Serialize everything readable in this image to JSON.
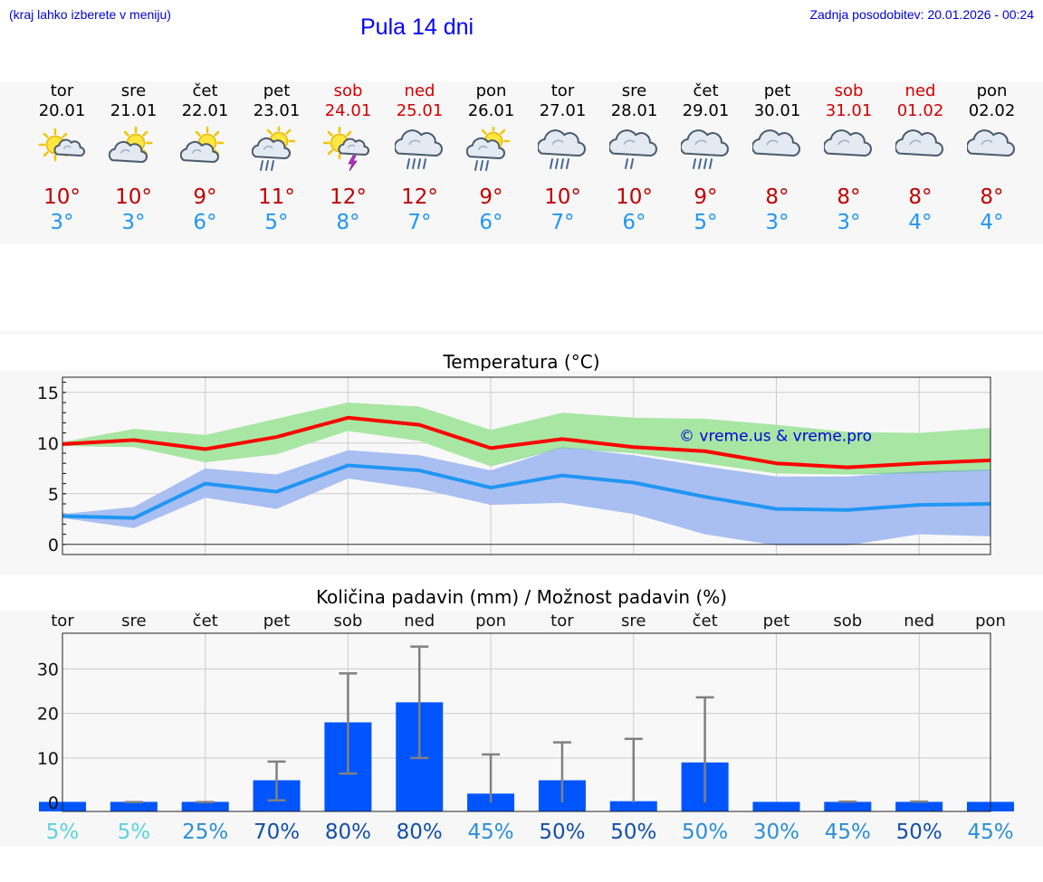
{
  "header": {
    "hint": "(kraj lahko izberete v meniju)",
    "title": "Pula 14 dni",
    "updated": "Zadnja posodobitev: 20.01.2026 - 00:24"
  },
  "days": [
    {
      "name": "tor",
      "date": "20.01",
      "weekend": false,
      "icon": "sun-cloud-icon",
      "tmax": "10°",
      "tmin": "3°"
    },
    {
      "name": "sre",
      "date": "21.01",
      "weekend": false,
      "icon": "sun-behind-cloud-icon",
      "tmax": "10°",
      "tmin": "3°"
    },
    {
      "name": "čet",
      "date": "22.01",
      "weekend": false,
      "icon": "sun-behind-cloud-icon",
      "tmax": "9°",
      "tmin": "6°"
    },
    {
      "name": "pet",
      "date": "23.01",
      "weekend": false,
      "icon": "sun-cloud-rain-icon",
      "tmax": "11°",
      "tmin": "5°"
    },
    {
      "name": "sob",
      "date": "24.01",
      "weekend": true,
      "icon": "sun-cloud-thunder-icon",
      "tmax": "12°",
      "tmin": "8°"
    },
    {
      "name": "ned",
      "date": "25.01",
      "weekend": true,
      "icon": "cloud-rain-icon",
      "tmax": "12°",
      "tmin": "7°"
    },
    {
      "name": "pon",
      "date": "26.01",
      "weekend": false,
      "icon": "sun-cloud-rain-icon",
      "tmax": "9°",
      "tmin": "6°"
    },
    {
      "name": "tor",
      "date": "27.01",
      "weekend": false,
      "icon": "cloud-rain-icon",
      "tmax": "10°",
      "tmin": "7°"
    },
    {
      "name": "sre",
      "date": "28.01",
      "weekend": false,
      "icon": "cloud-light-rain-icon",
      "tmax": "10°",
      "tmin": "6°"
    },
    {
      "name": "čet",
      "date": "29.01",
      "weekend": false,
      "icon": "cloud-rain-icon",
      "tmax": "9°",
      "tmin": "5°"
    },
    {
      "name": "pet",
      "date": "30.01",
      "weekend": false,
      "icon": "cloud-icon",
      "tmax": "8°",
      "tmin": "3°"
    },
    {
      "name": "sob",
      "date": "31.01",
      "weekend": true,
      "icon": "cloud-icon",
      "tmax": "8°",
      "tmin": "3°"
    },
    {
      "name": "ned",
      "date": "01.02",
      "weekend": true,
      "icon": "cloud-icon",
      "tmax": "8°",
      "tmin": "4°"
    },
    {
      "name": "pon",
      "date": "02.02",
      "weekend": false,
      "icon": "cloud-icon",
      "tmax": "8°",
      "tmin": "4°"
    }
  ],
  "colors": {
    "max_line": "#ff0000",
    "max_band": "#a8e6a3",
    "min_line": "#2196f3",
    "min_band": "#a9bff2",
    "overlap_band": "#7cbfae",
    "bar": "#0055ff",
    "err": "#808080"
  },
  "chart_data": [
    {
      "type": "line",
      "title": "Temperatura (°C)",
      "watermark": "© vreme.us & vreme.pro",
      "xlabel": "",
      "ylabel": "",
      "ylim": [
        -1,
        16.5
      ],
      "yticks": [
        "0",
        "5",
        "10",
        "15"
      ],
      "ytick_values": [
        0,
        5,
        10,
        15
      ],
      "grid": true,
      "x": [
        0,
        1,
        2,
        3,
        4,
        5,
        6,
        7,
        8,
        9,
        10,
        11,
        12,
        13
      ],
      "series": [
        {
          "name": "max",
          "values": [
            9.9,
            10.3,
            9.4,
            10.6,
            12.5,
            11.8,
            9.5,
            10.4,
            9.6,
            9.2,
            8.0,
            7.6,
            8.0,
            8.3
          ],
          "band_low": [
            9.7,
            9.6,
            8.1,
            8.9,
            11.2,
            10.2,
            7.7,
            9.5,
            9.0,
            8.0,
            7.0,
            6.9,
            7.0,
            7.3
          ],
          "band_high": [
            10.1,
            11.4,
            10.8,
            12.4,
            14.0,
            13.6,
            11.3,
            13.0,
            12.5,
            12.4,
            11.8,
            11.1,
            11.0,
            11.5
          ]
        },
        {
          "name": "min",
          "values": [
            2.8,
            2.6,
            6.0,
            5.2,
            7.8,
            7.3,
            5.6,
            6.8,
            6.1,
            4.7,
            3.5,
            3.4,
            3.9,
            4.0
          ],
          "band_low": [
            2.6,
            1.6,
            4.6,
            3.5,
            6.5,
            5.5,
            3.9,
            4.1,
            3.0,
            1.0,
            -0.1,
            -0.1,
            1.0,
            0.8
          ],
          "band_high": [
            3.0,
            3.7,
            7.5,
            6.9,
            9.3,
            8.8,
            7.3,
            9.6,
            8.8,
            7.7,
            6.7,
            6.7,
            7.2,
            7.4
          ]
        }
      ]
    },
    {
      "type": "bar",
      "title": "Količina padavin (mm) / Možnost padavin (%)",
      "categories": [
        "tor",
        "sre",
        "čet",
        "pet",
        "sob",
        "ned",
        "pon",
        "tor",
        "sre",
        "čet",
        "pet",
        "sob",
        "ned",
        "pon"
      ],
      "values": [
        0,
        0,
        0,
        5,
        18,
        22.5,
        2,
        5,
        0.3,
        9,
        0,
        0,
        0,
        0
      ],
      "err_low": [
        0,
        0,
        0,
        0.5,
        6.5,
        10,
        0,
        0,
        0,
        0,
        0,
        0,
        0,
        0
      ],
      "err_high": [
        0,
        0.1,
        0.1,
        9.2,
        29,
        35,
        10.8,
        13.5,
        14.3,
        23.6,
        0,
        0.2,
        0.2,
        0
      ],
      "ylim": [
        -2,
        38
      ],
      "yticks": [
        "0",
        "10",
        "20",
        "30"
      ],
      "ytick_values": [
        0,
        10,
        20,
        30
      ],
      "probabilities": [
        "5%",
        "5%",
        "25%",
        "70%",
        "80%",
        "80%",
        "45%",
        "50%",
        "50%",
        "50%",
        "30%",
        "45%",
        "50%",
        "45%"
      ],
      "probability_colors": [
        "#5ad3e0",
        "#5ad3e0",
        "#2a8fd6",
        "#1250a8",
        "#1250a8",
        "#1250a8",
        "#2a8fd6",
        "#1250a8",
        "#1250a8",
        "#2a8fd6",
        "#2a8fd6",
        "#2a8fd6",
        "#1250a8",
        "#2a8fd6"
      ]
    }
  ]
}
